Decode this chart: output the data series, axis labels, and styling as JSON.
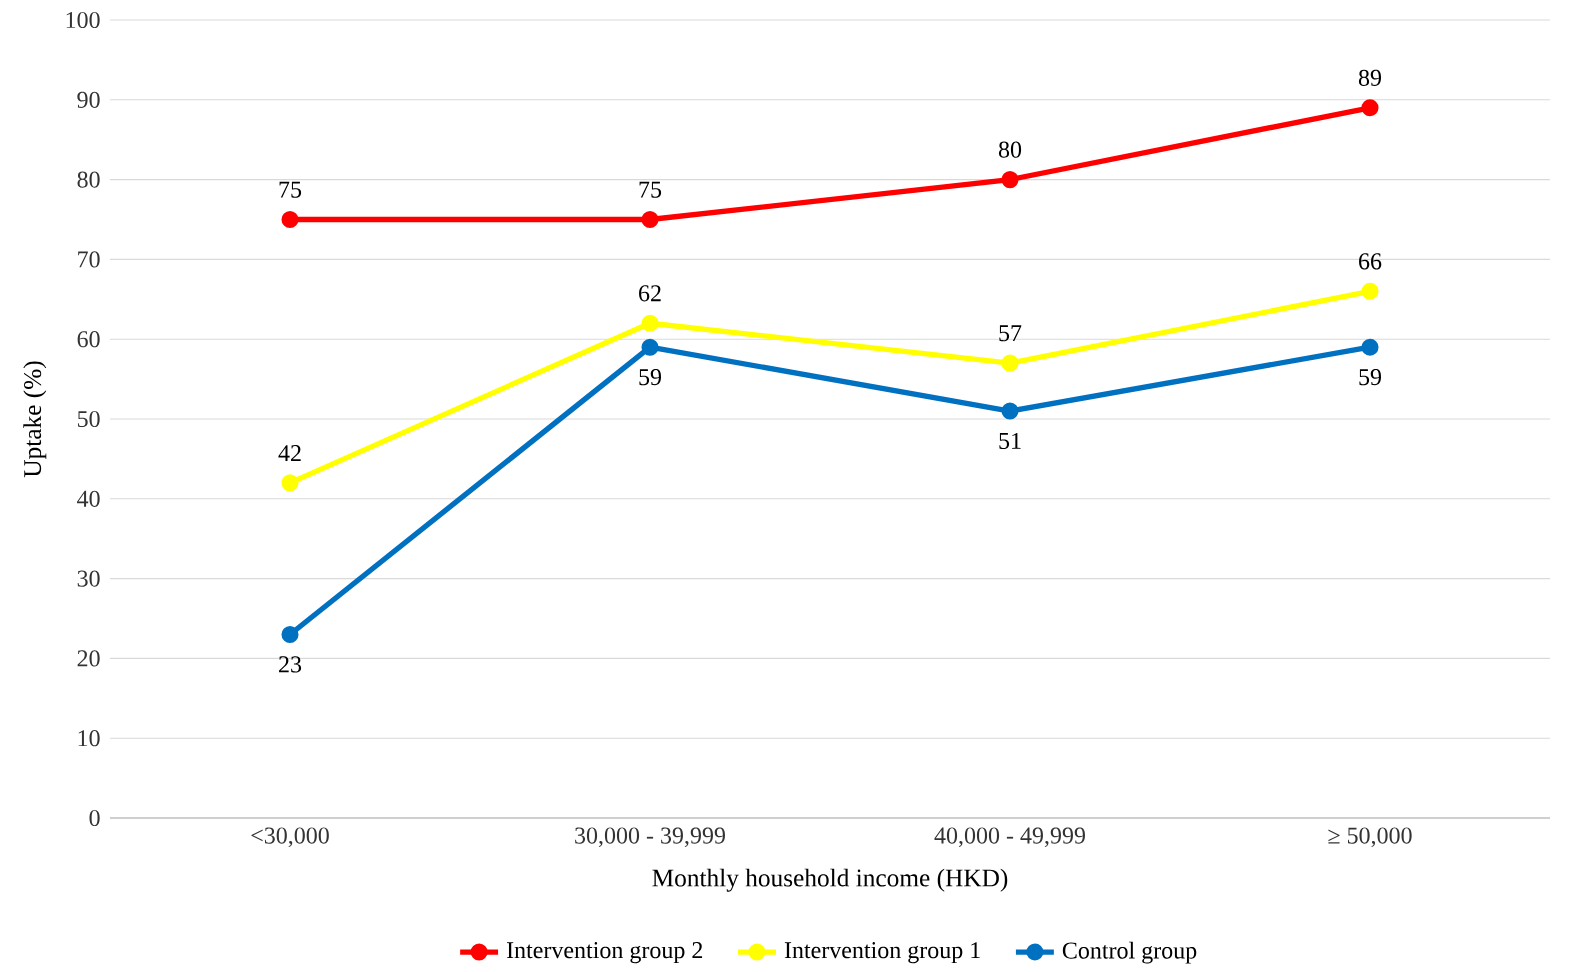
{
  "chart_data": {
    "type": "line",
    "xlabel": "Monthly household income (HKD)",
    "ylabel": "Uptake (%)",
    "categories": [
      "<30,000",
      "30,000 - 39,999",
      "40,000 - 49,999",
      "≥ 50,000"
    ],
    "series": [
      {
        "name": "Intervention group 2",
        "color": "#ff0000",
        "values": [
          75,
          75,
          80,
          89
        ]
      },
      {
        "name": "Intervention group 1",
        "color": "#ffff00",
        "values": [
          42,
          62,
          57,
          66
        ]
      },
      {
        "name": "Control group",
        "color": "#0070c0",
        "values": [
          23,
          59,
          51,
          59
        ]
      }
    ],
    "ylim": [
      0,
      100
    ],
    "yticks": [
      0,
      10,
      20,
      30,
      40,
      50,
      60,
      70,
      80,
      90,
      100
    ],
    "grid": "y",
    "legend": "bottom",
    "marker": "circle",
    "line_style": "solid",
    "data_labels": true
  }
}
